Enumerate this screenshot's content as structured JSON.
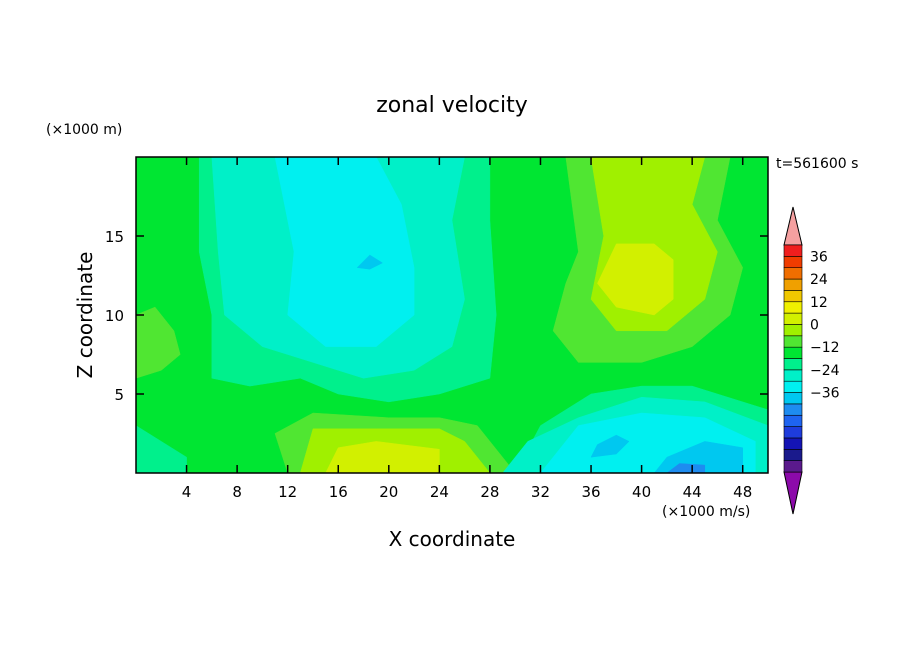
{
  "chart_data": {
    "type": "heatmap",
    "title": "zonal velocity",
    "xlabel": "X coordinate",
    "ylabel": "Z coordinate",
    "y_unit_label": "(×1000 m)",
    "x_unit_label": "(×1000 m/s)",
    "time_label": "t=561600 s",
    "xlim": [
      0,
      50
    ],
    "ylim": [
      0,
      20
    ],
    "x_ticks": [
      4,
      8,
      12,
      16,
      20,
      24,
      28,
      32,
      36,
      40,
      44,
      48
    ],
    "y_ticks": [
      5,
      10,
      15
    ],
    "colorbar": {
      "levels": [
        -40,
        -36,
        -32,
        -28,
        -24,
        -20,
        -16,
        -12,
        -8,
        -4,
        0,
        4,
        8,
        12,
        16,
        20,
        24,
        28,
        32,
        36,
        40
      ],
      "colors": [
        "#5a1a8c",
        "#1a1a8c",
        "#1414b4",
        "#1e3cdc",
        "#1e64f0",
        "#1e8cf0",
        "#00c8f0",
        "#00f0f0",
        "#00f0c8",
        "#00f08c",
        "#00e632",
        "#50e632",
        "#a0f000",
        "#d2f000",
        "#f0f000",
        "#f0c800",
        "#f0a000",
        "#f06e00",
        "#f03c00",
        "#f01e1e"
      ],
      "low_arrow_color": "#8c0aaa",
      "high_arrow_color": "#f5a0a0",
      "tick_labels": [
        "36",
        "24",
        "12",
        "0",
        "−12",
        "−24",
        "−36"
      ]
    },
    "field_regions": [
      {
        "value": 2,
        "polygon": [
          [
            0,
            0
          ],
          [
            50,
            0
          ],
          [
            50,
            20
          ],
          [
            0,
            20
          ]
        ]
      },
      {
        "value": 6,
        "polygon": [
          [
            39,
            0
          ],
          [
            50,
            0
          ],
          [
            50,
            3
          ],
          [
            44,
            4
          ],
          [
            40,
            5
          ]
        ]
      },
      {
        "value": 6,
        "polygon": [
          [
            0,
            6
          ],
          [
            2,
            6.5
          ],
          [
            3.5,
            7.5
          ],
          [
            3,
            9
          ],
          [
            1.5,
            10.5
          ],
          [
            0,
            10
          ]
        ]
      },
      {
        "value": 6,
        "polygon": [
          [
            34,
            20
          ],
          [
            35,
            14
          ],
          [
            34,
            12
          ],
          [
            33,
            9
          ],
          [
            35,
            7
          ],
          [
            40,
            7
          ],
          [
            44,
            8
          ],
          [
            47,
            10
          ],
          [
            48,
            13
          ],
          [
            46,
            16
          ],
          [
            47,
            20
          ]
        ]
      },
      {
        "value": 6,
        "polygon": [
          [
            12,
            0
          ],
          [
            30,
            0
          ],
          [
            27,
            3
          ],
          [
            24,
            3.5
          ],
          [
            20,
            3.5
          ],
          [
            14,
            3.8
          ],
          [
            11,
            2.5
          ]
        ]
      },
      {
        "value": 10,
        "polygon": [
          [
            36,
            20
          ],
          [
            37,
            15
          ],
          [
            36,
            11
          ],
          [
            38,
            9
          ],
          [
            42,
            9
          ],
          [
            45,
            11
          ],
          [
            46,
            14
          ],
          [
            44,
            17
          ],
          [
            45,
            20
          ]
        ]
      },
      {
        "value": 10,
        "polygon": [
          [
            13,
            0
          ],
          [
            28,
            0
          ],
          [
            26,
            2
          ],
          [
            24,
            2.8
          ],
          [
            19,
            2.8
          ],
          [
            14,
            2.8
          ]
        ]
      },
      {
        "value": 14,
        "polygon": [
          [
            36.5,
            12
          ],
          [
            38,
            10.5
          ],
          [
            41,
            10
          ],
          [
            42.5,
            11
          ],
          [
            42.5,
            13.5
          ],
          [
            41,
            14.5
          ],
          [
            38,
            14.5
          ]
        ]
      },
      {
        "value": 14,
        "polygon": [
          [
            15,
            0
          ],
          [
            24,
            0
          ],
          [
            24,
            1.5
          ],
          [
            19,
            2
          ],
          [
            16,
            1.6
          ]
        ]
      },
      {
        "value": -2,
        "polygon": [
          [
            5,
            20
          ],
          [
            28,
            20
          ],
          [
            28,
            16
          ],
          [
            28.5,
            10
          ],
          [
            28,
            6
          ],
          [
            24,
            5
          ],
          [
            20,
            4.5
          ],
          [
            16,
            5
          ],
          [
            13,
            6
          ],
          [
            9,
            5.5
          ],
          [
            6,
            6
          ],
          [
            6,
            10
          ],
          [
            5,
            14
          ]
        ]
      },
      {
        "value": -2,
        "polygon": [
          [
            25,
            0
          ],
          [
            30,
            0
          ],
          [
            32,
            3
          ],
          [
            36,
            5
          ],
          [
            40,
            5.5
          ],
          [
            44,
            5.5
          ],
          [
            50,
            4
          ],
          [
            50,
            0
          ]
        ]
      },
      {
        "value": -2,
        "polygon": [
          [
            0,
            0
          ],
          [
            4,
            0
          ],
          [
            4,
            1
          ],
          [
            0,
            3
          ]
        ]
      },
      {
        "value": -6,
        "polygon": [
          [
            6,
            20
          ],
          [
            26,
            20
          ],
          [
            25,
            16
          ],
          [
            26,
            11
          ],
          [
            25,
            8
          ],
          [
            22,
            6.5
          ],
          [
            18,
            6
          ],
          [
            14,
            7
          ],
          [
            10,
            8
          ],
          [
            7,
            10
          ],
          [
            6.5,
            14
          ]
        ]
      },
      {
        "value": -6,
        "polygon": [
          [
            29,
            0
          ],
          [
            50,
            0
          ],
          [
            50,
            3
          ],
          [
            45,
            4.5
          ],
          [
            40,
            4.8
          ],
          [
            35,
            3.5
          ],
          [
            31,
            2
          ]
        ]
      },
      {
        "value": -10,
        "polygon": [
          [
            11,
            20
          ],
          [
            19,
            20
          ],
          [
            21,
            17
          ],
          [
            22,
            13
          ],
          [
            22,
            10
          ],
          [
            19,
            8
          ],
          [
            15,
            8
          ],
          [
            12,
            10
          ],
          [
            12.5,
            14
          ]
        ]
      },
      {
        "value": -10,
        "polygon": [
          [
            32,
            0
          ],
          [
            49,
            0
          ],
          [
            49,
            2
          ],
          [
            45,
            3.5
          ],
          [
            40,
            3.8
          ],
          [
            35,
            3
          ]
        ]
      },
      {
        "value": -14,
        "polygon": [
          [
            17.5,
            13
          ],
          [
            18.5,
            12.9
          ],
          [
            19.5,
            13.3
          ],
          [
            18.5,
            13.8
          ]
        ]
      },
      {
        "value": -14,
        "polygon": [
          [
            36,
            1
          ],
          [
            38,
            1.2
          ],
          [
            39,
            2
          ],
          [
            38,
            2.4
          ],
          [
            36.5,
            1.8
          ]
        ]
      },
      {
        "value": -14,
        "polygon": [
          [
            41,
            0
          ],
          [
            48,
            0
          ],
          [
            48,
            1.6
          ],
          [
            45,
            2
          ],
          [
            42,
            1
          ]
        ]
      },
      {
        "value": -18,
        "polygon": [
          [
            42,
            0
          ],
          [
            45,
            0
          ],
          [
            45,
            0.5
          ],
          [
            43,
            0.6
          ]
        ]
      }
    ]
  }
}
